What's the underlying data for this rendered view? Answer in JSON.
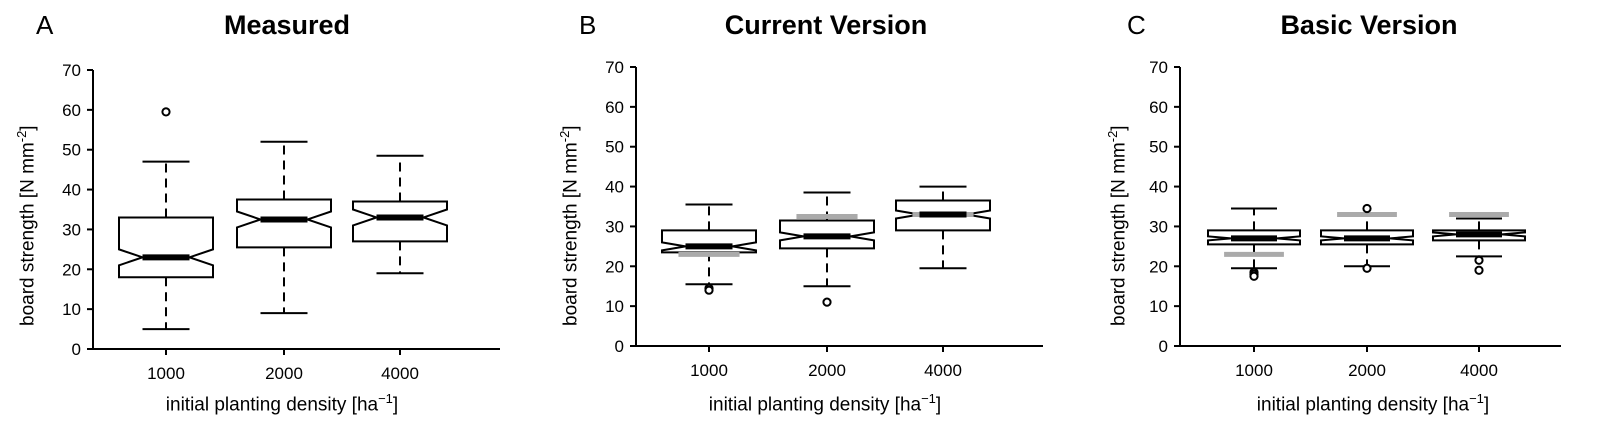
{
  "chart_data": [
    {
      "type": "box",
      "panel_label": "A",
      "title": "Measured",
      "xlabel": "initial planting density [ha",
      "xlabel_sup": "−1",
      "xlabel_end": "]",
      "ylabel": "board strength [N mm",
      "ylabel_sup": "-2",
      "ylabel_end": "]",
      "ylim": [
        0,
        70
      ],
      "yticks": [
        0,
        10,
        20,
        30,
        40,
        50,
        60,
        70
      ],
      "notched": true,
      "categories": [
        "1000",
        "2000",
        "4000"
      ],
      "boxes": [
        {
          "whisker_low": 5,
          "q1": 18,
          "median": 23,
          "q3": 33,
          "whisker_high": 47,
          "notch": [
            21,
            25
          ],
          "outliers": [
            59.5
          ],
          "reference": null
        },
        {
          "whisker_low": 9,
          "q1": 25.5,
          "median": 32.5,
          "q3": 37.5,
          "whisker_high": 52,
          "notch": [
            30.5,
            34.5
          ],
          "outliers": [],
          "reference": null
        },
        {
          "whisker_low": 19,
          "q1": 27,
          "median": 33,
          "q3": 37,
          "whisker_high": 48.5,
          "notch": [
            31,
            35
          ],
          "outliers": [],
          "reference": null
        }
      ]
    },
    {
      "type": "box",
      "panel_label": "B",
      "title": "Current Version",
      "xlabel": "initial planting density [ha",
      "xlabel_sup": "−1",
      "xlabel_end": "]",
      "ylabel": "board strength [N mm",
      "ylabel_sup": "-2",
      "ylabel_end": "]",
      "ylim": [
        0,
        70
      ],
      "yticks": [
        0,
        10,
        20,
        30,
        40,
        50,
        60,
        70
      ],
      "notched": true,
      "categories": [
        "1000",
        "2000",
        "4000"
      ],
      "reference_color": "#aaaaaa",
      "boxes": [
        {
          "whisker_low": 15.5,
          "q1": 23.5,
          "median": 25,
          "q3": 29,
          "whisker_high": 35.5,
          "notch": [
            24,
            26
          ],
          "outliers": [
            14.5,
            14
          ],
          "reference": 23
        },
        {
          "whisker_low": 15,
          "q1": 24.5,
          "median": 27.5,
          "q3": 31.5,
          "whisker_high": 38.5,
          "notch": [
            26.5,
            28.5
          ],
          "outliers": [
            11
          ],
          "reference": 32.5
        },
        {
          "whisker_low": 19.5,
          "q1": 29,
          "median": 33,
          "q3": 36.5,
          "whisker_high": 40,
          "notch": [
            32,
            34
          ],
          "outliers": [],
          "reference": 33
        }
      ]
    },
    {
      "type": "box",
      "panel_label": "C",
      "title": "Basic Version",
      "xlabel": "initial planting density [ha",
      "xlabel_sup": "−1",
      "xlabel_end": "]",
      "ylabel": "board strength [N mm",
      "ylabel_sup": "-2",
      "ylabel_end": "]",
      "ylim": [
        0,
        70
      ],
      "yticks": [
        0,
        10,
        20,
        30,
        40,
        50,
        60,
        70
      ],
      "notched": true,
      "categories": [
        "1000",
        "2000",
        "4000"
      ],
      "reference_color": "#aaaaaa",
      "boxes": [
        {
          "whisker_low": 19.5,
          "q1": 25.5,
          "median": 27,
          "q3": 29,
          "whisker_high": 34.5,
          "notch": [
            26.5,
            27.5
          ],
          "outliers": [
            18.5,
            18,
            17.5
          ],
          "reference": 23
        },
        {
          "whisker_low": 20,
          "q1": 25.5,
          "median": 27,
          "q3": 29,
          "whisker_high": 33,
          "notch": [
            26.5,
            27.5
          ],
          "outliers": [
            34.5,
            19.5
          ],
          "reference": 33
        },
        {
          "whisker_low": 22.5,
          "q1": 26.5,
          "median": 28,
          "q3": 29,
          "whisker_high": 32,
          "notch": [
            27.5,
            28.5
          ],
          "outliers": [
            21.5,
            19
          ],
          "reference": 33
        }
      ]
    }
  ]
}
